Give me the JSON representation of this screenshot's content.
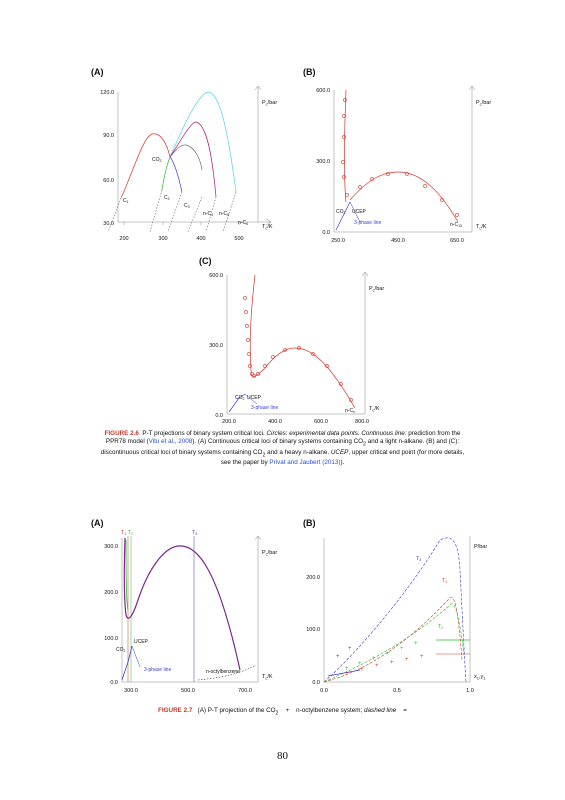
{
  "page_number": "80",
  "fig26": {
    "panelA": {
      "label": "(A)",
      "ylabel": "P",
      "ylabel_sub": "c",
      "ylabel_unit": "/bar",
      "xlabel": "T",
      "xlabel_sub": "c",
      "xlabel_unit": "/K",
      "yticks": [
        "120.0",
        "90.0",
        "60.0",
        "30.0"
      ],
      "xticks": [
        "200",
        "300",
        "400",
        "500"
      ],
      "ann_co2": "CO",
      "ann_co2_sub": "2",
      "ann_c1": "C",
      "ann_c1_sub": "1",
      "ann_c2": "C",
      "ann_c2_sub": "2",
      "ann_c3": "C",
      "ann_c3_sub": "3",
      "ann_nc4": "n-C",
      "ann_nc4_sub": "4",
      "ann_nc5": "n-C",
      "ann_nc5_sub": "5",
      "ann_nc6": "n-C",
      "ann_nc6_sub": "6"
    },
    "panelB": {
      "label": "(B)",
      "ylabel": "P",
      "ylabel_sub": "c",
      "ylabel_unit": "/bar",
      "xlabel": "T",
      "xlabel_sub": "c",
      "xlabel_unit": "/K",
      "yticks": [
        "600.0",
        "300.0",
        "0.0"
      ],
      "xticks": [
        "250.0",
        "450.0",
        "650.0"
      ],
      "ann_co2": "CO",
      "ann_co2_sub": "2",
      "ann_ucep": "UCEP",
      "ann_3phase": "3-phase line",
      "ann_nc13": "n-C",
      "ann_nc13_sub": "13"
    },
    "panelC": {
      "label": "(C)",
      "ylabel": "P",
      "ylabel_sub": "c",
      "ylabel_unit": "/bar",
      "xlabel": "T",
      "xlabel_sub": "c",
      "xlabel_unit": "/K",
      "yticks": [
        "600.0",
        "300.0",
        "0.0"
      ],
      "xticks": [
        "200.0",
        "400.0",
        "600.0",
        "800.0"
      ],
      "ann_co2": "CO",
      "ann_co2_sub": "2",
      "ann_ucep": "UCEP",
      "ann_3phase": "3-phase line",
      "ann_nc": "n-C",
      "ann_nc_sub": "x"
    },
    "caption": {
      "fig": "FIGURE 2.6",
      "t1": "P-T projections of binary system critical loci. ",
      "t2": "Circles: experimental data points. Continuous line:",
      "t3": " prediction from the PPR78 model (",
      "cite1": "Vitu et al., 2008",
      "t4": "). (A) Continuous critical loci of binary systems containing CO",
      "t4_sub": "2",
      "t5": " and a light n-alkane. (B) and (C): discontinuous critical loci of binary systems containing CO",
      "t5_sub": "2",
      "t6": " and a heavy n-alkane. ",
      "t7": "UCEP",
      "t8": ", upper critical end point (for more details, see the paper by ",
      "cite2": "Privat and Jaubert (2013)",
      "t9": ")."
    }
  },
  "fig27": {
    "panelA": {
      "label": "(A)",
      "ylabel": "P",
      "ylabel_sub": "c",
      "ylabel_unit": "/bar",
      "xlabel": "T",
      "xlabel_sub": "c",
      "xlabel_unit": "/K",
      "yticks": [
        "300.0",
        "200.0",
        "100.0",
        "0.0"
      ],
      "xticks": [
        "300.0",
        "500.0",
        "700.0"
      ],
      "top_t1": "T",
      "top_t1_sub": "1",
      "top_t2": "T",
      "top_t2_sub": "2",
      "top_t3": "T",
      "top_t3_sub": "3",
      "ann_co2": "CO",
      "ann_co2_sub": "2",
      "ann_ucep": "UCEP",
      "ann_3phase": "3-phase line",
      "ann_noctyl": "n-octylbenzene"
    },
    "panelB": {
      "label": "(B)",
      "ylabel": "P/bar",
      "xlabel": "x",
      "xlabel_sub": "1",
      "xlabel_mid": ",y",
      "xlabel_sub2": "1",
      "yticks": [
        "200.0",
        "100.0",
        "0.0"
      ],
      "xticks": [
        "0.0",
        "0.5",
        "1.0"
      ],
      "ann_t1": "T",
      "ann_t1_sub": "1",
      "ann_t2": "T",
      "ann_t2_sub": "2",
      "ann_t3": "T",
      "ann_t3_sub": "3"
    },
    "caption": {
      "fig": "FIGURE 2.7",
      "t1": "(A) P-T projection of the CO",
      "t1_sub": "2",
      "t2": "+",
      "t3": "n-octylbenzene system; ",
      "t4": "dashed line",
      "t5": "="
    }
  }
}
